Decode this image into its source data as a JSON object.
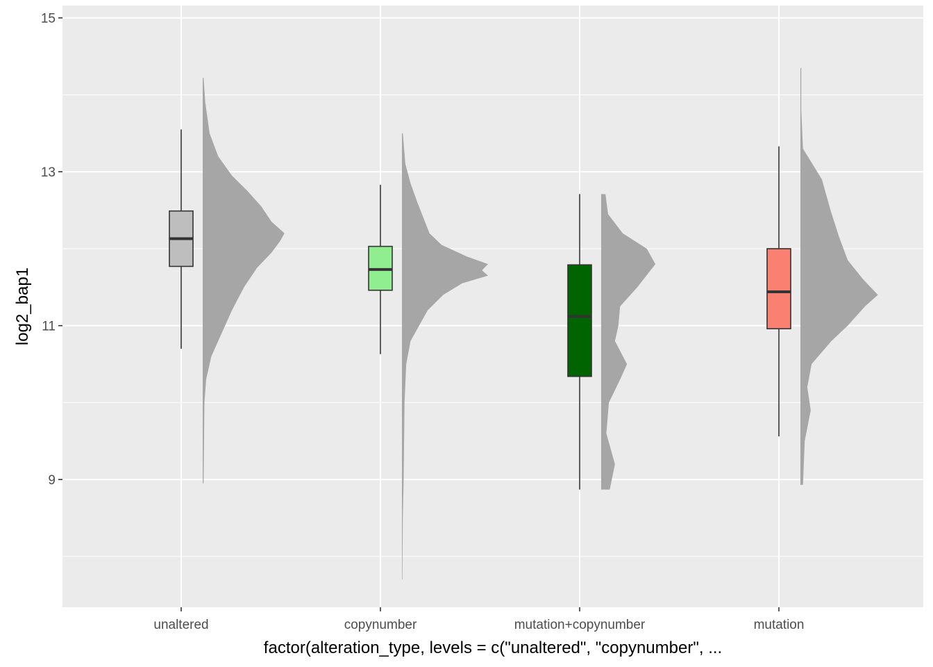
{
  "chart_data": {
    "type": "box",
    "xlabel": "factor(alteration_type, levels = c(\"unaltered\", \"copynumber\", ...",
    "ylabel": "log2_bap1",
    "ylim": [
      7.35,
      15.0
    ],
    "yticks": [
      9,
      11,
      13,
      15
    ],
    "grid": true,
    "colors": {
      "panel": "#ebebeb",
      "grid": "#ffffff",
      "half_violin": "#a6a6a6",
      "box_outline": "#333333"
    },
    "categories": [
      "unaltered",
      "copynumber",
      "mutation+copynumber",
      "mutation"
    ],
    "boxes": [
      {
        "category": "unaltered",
        "fill": "#bebebe",
        "whisker_low": 10.7,
        "q1": 11.77,
        "median": 12.13,
        "q3": 12.49,
        "whisker_high": 13.55
      },
      {
        "category": "copynumber",
        "fill": "#90ee90",
        "whisker_low": 10.63,
        "q1": 11.46,
        "median": 11.73,
        "q3": 12.03,
        "whisker_high": 12.83
      },
      {
        "category": "mutation+copynumber",
        "fill": "#006400",
        "whisker_low": 8.87,
        "q1": 10.34,
        "median": 11.12,
        "q3": 11.79,
        "whisker_high": 12.71
      },
      {
        "category": "mutation",
        "fill": "#fa8072",
        "whisker_low": 9.56,
        "q1": 10.96,
        "median": 11.44,
        "q3": 12.0,
        "whisker_high": 13.33
      }
    ],
    "half_violins": [
      {
        "category": "unaltered",
        "y_min": 8.95,
        "y_max": 14.22,
        "profile": [
          [
            8.95,
            0.01
          ],
          [
            10.0,
            0.02
          ],
          [
            10.3,
            0.04
          ],
          [
            10.6,
            0.1
          ],
          [
            10.9,
            0.22
          ],
          [
            11.2,
            0.34
          ],
          [
            11.5,
            0.48
          ],
          [
            11.75,
            0.63
          ],
          [
            11.95,
            0.8
          ],
          [
            12.1,
            0.9
          ],
          [
            12.2,
            0.95
          ],
          [
            12.35,
            0.8
          ],
          [
            12.55,
            0.68
          ],
          [
            12.75,
            0.52
          ],
          [
            12.95,
            0.34
          ],
          [
            13.2,
            0.18
          ],
          [
            13.5,
            0.08
          ],
          [
            13.9,
            0.03
          ],
          [
            14.22,
            0.01
          ]
        ]
      },
      {
        "category": "copynumber",
        "y_min": 7.7,
        "y_max": 13.5,
        "profile": [
          [
            7.7,
            0.005
          ],
          [
            8.5,
            0.01
          ],
          [
            9.0,
            0.02
          ],
          [
            9.5,
            0.025
          ],
          [
            10.0,
            0.03
          ],
          [
            10.5,
            0.05
          ],
          [
            10.8,
            0.1
          ],
          [
            11.0,
            0.2
          ],
          [
            11.2,
            0.3
          ],
          [
            11.4,
            0.48
          ],
          [
            11.55,
            0.7
          ],
          [
            11.65,
            1.0
          ],
          [
            11.72,
            0.93
          ],
          [
            11.8,
            1.0
          ],
          [
            11.9,
            0.75
          ],
          [
            12.05,
            0.46
          ],
          [
            12.2,
            0.32
          ],
          [
            12.4,
            0.25
          ],
          [
            12.6,
            0.18
          ],
          [
            12.85,
            0.1
          ],
          [
            13.1,
            0.04
          ],
          [
            13.5,
            0.01
          ]
        ]
      },
      {
        "category": "mutation+copynumber",
        "y_min": 8.87,
        "y_max": 12.71,
        "profile": [
          [
            8.87,
            0.1
          ],
          [
            9.2,
            0.16
          ],
          [
            9.6,
            0.06
          ],
          [
            10.0,
            0.09
          ],
          [
            10.3,
            0.22
          ],
          [
            10.5,
            0.3
          ],
          [
            10.8,
            0.16
          ],
          [
            11.0,
            0.2
          ],
          [
            11.25,
            0.22
          ],
          [
            11.5,
            0.42
          ],
          [
            11.8,
            0.63
          ],
          [
            12.0,
            0.53
          ],
          [
            12.2,
            0.25
          ],
          [
            12.45,
            0.08
          ],
          [
            12.71,
            0.05
          ]
        ]
      },
      {
        "category": "mutation",
        "y_min": 8.93,
        "y_max": 14.35,
        "profile": [
          [
            8.93,
            0.03
          ],
          [
            9.5,
            0.05
          ],
          [
            9.9,
            0.12
          ],
          [
            10.2,
            0.08
          ],
          [
            10.5,
            0.13
          ],
          [
            10.8,
            0.36
          ],
          [
            11.0,
            0.55
          ],
          [
            11.25,
            0.75
          ],
          [
            11.4,
            0.9
          ],
          [
            11.6,
            0.73
          ],
          [
            11.85,
            0.55
          ],
          [
            12.15,
            0.45
          ],
          [
            12.5,
            0.35
          ],
          [
            12.9,
            0.25
          ],
          [
            13.3,
            0.03
          ],
          [
            13.8,
            0.01
          ],
          [
            14.35,
            0.01
          ]
        ]
      }
    ]
  }
}
